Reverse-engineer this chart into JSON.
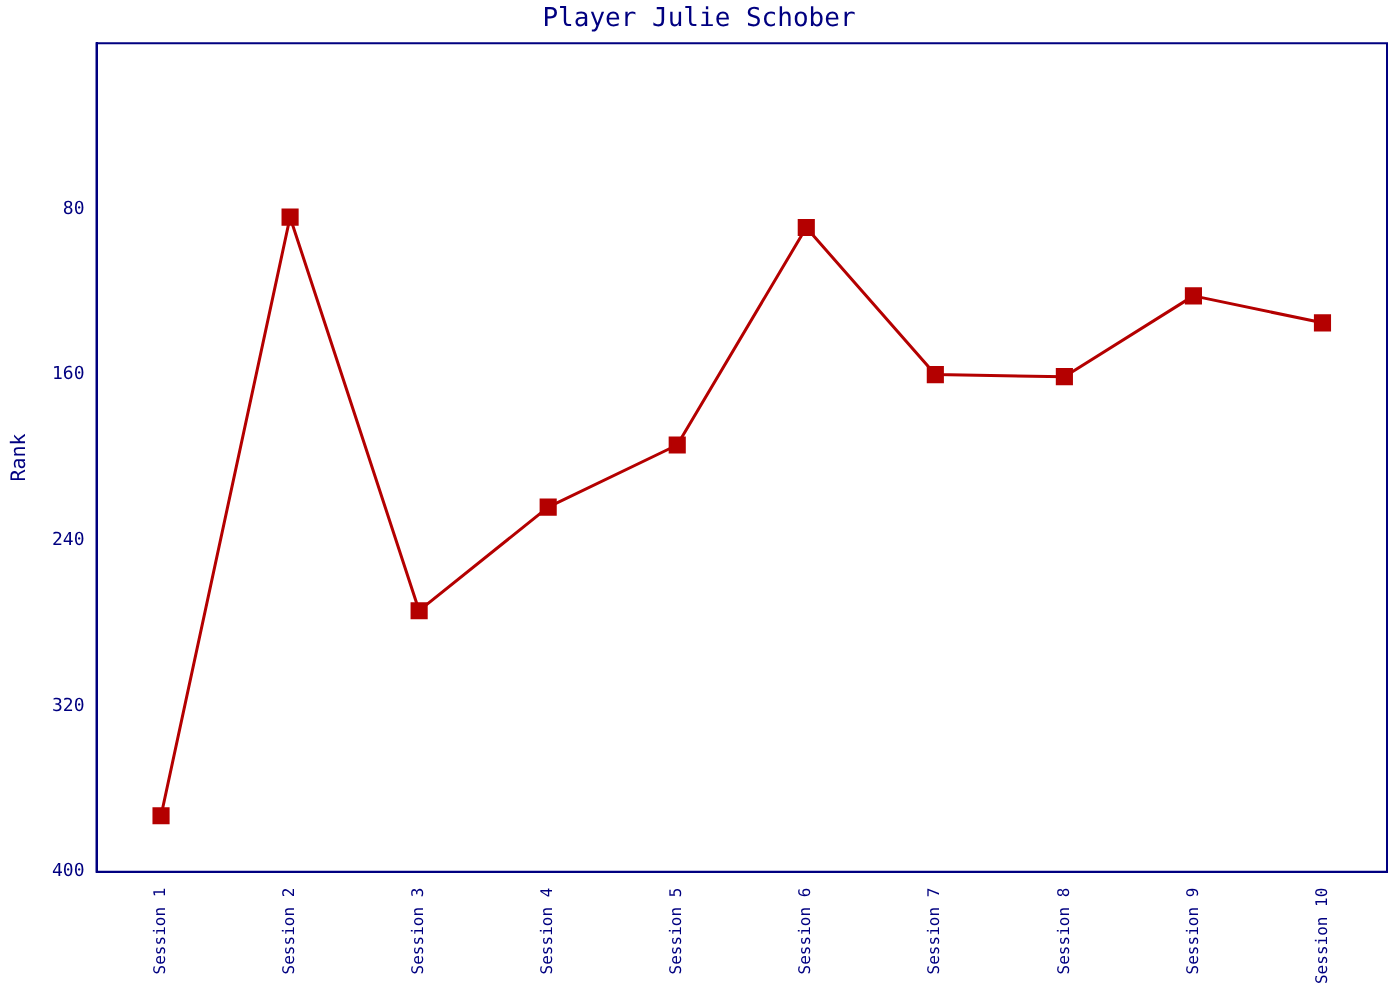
{
  "chart_data": {
    "type": "line",
    "title": "Player Julie Schober",
    "ylabel": "Rank",
    "categories": [
      "Session 1",
      "Session 2",
      "Session 3",
      "Session 4",
      "Session 5",
      "Session 6",
      "Session 7",
      "Session 8",
      "Session 9",
      "Session 10"
    ],
    "series": [
      {
        "color": "#b40000",
        "values": [
          373,
          84,
          274,
          224,
          194,
          89,
          160,
          161,
          122,
          135
        ]
      }
    ],
    "ylim": [
      400,
      0
    ],
    "yticks": [
      80,
      160,
      240,
      320,
      400
    ],
    "grid": false,
    "legend": false,
    "marker": "square",
    "line_style": "solid"
  }
}
